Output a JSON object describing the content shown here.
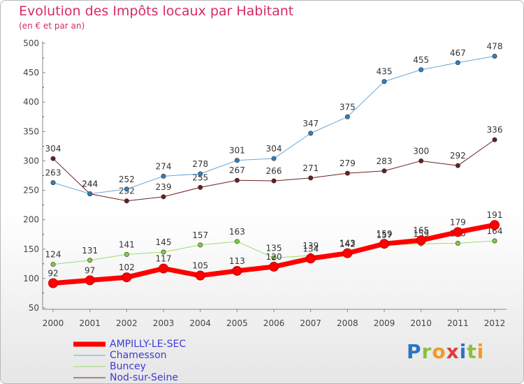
{
  "header": {
    "title": "Evolution des Impôts locaux par Habitant",
    "subtitle": "(en € et par an)"
  },
  "logo_text": "Proxiti",
  "chart_data": {
    "type": "line",
    "x": [
      2000,
      2001,
      2002,
      2003,
      2004,
      2005,
      2006,
      2007,
      2008,
      2009,
      2010,
      2011,
      2012
    ],
    "ylim": [
      50,
      500
    ],
    "yticks": [
      50,
      100,
      150,
      200,
      250,
      300,
      350,
      400,
      450,
      500
    ],
    "grid": false,
    "legend_position": "bottom-left",
    "series": [
      {
        "name": "Nod-sur-Seine",
        "color": "#6b1f1f",
        "dot_color": "#6b1f1f",
        "width": 1,
        "values": [
          304,
          244,
          232,
          239,
          255,
          267,
          266,
          271,
          279,
          283,
          300,
          292,
          336
        ]
      },
      {
        "name": "Chamesson",
        "color": "#6aa8d8",
        "dot_color": "#2f7fc1",
        "width": 1,
        "values": [
          263,
          244,
          252,
          274,
          278,
          301,
          304,
          347,
          375,
          435,
          455,
          467,
          478
        ]
      },
      {
        "name": "Buncey",
        "color": "#9ddc6c",
        "dot_color": "#7fce3a",
        "width": 1,
        "values": [
          124,
          131,
          141,
          145,
          157,
          163,
          135,
          139,
          142,
          157,
          159,
          160,
          164
        ]
      },
      {
        "name": "AMPILLY-LE-SEC",
        "color": "#ff0000",
        "dot_color": "#ff0000",
        "width": 7,
        "values": [
          92,
          97,
          102,
          117,
          105,
          113,
          120,
          134,
          143,
          159,
          165,
          179,
          191
        ]
      }
    ]
  },
  "legend": [
    {
      "label": "AMPILLY-LE-SEC",
      "color": "#ff0000",
      "thickness": 7
    },
    {
      "label": "Chamesson",
      "color": "#6aa8d8",
      "thickness": 1
    },
    {
      "label": "Buncey",
      "color": "#9ddc6c",
      "thickness": 1
    },
    {
      "label": "Nod-sur-Seine",
      "color": "#6b1f1f",
      "thickness": 1
    }
  ]
}
